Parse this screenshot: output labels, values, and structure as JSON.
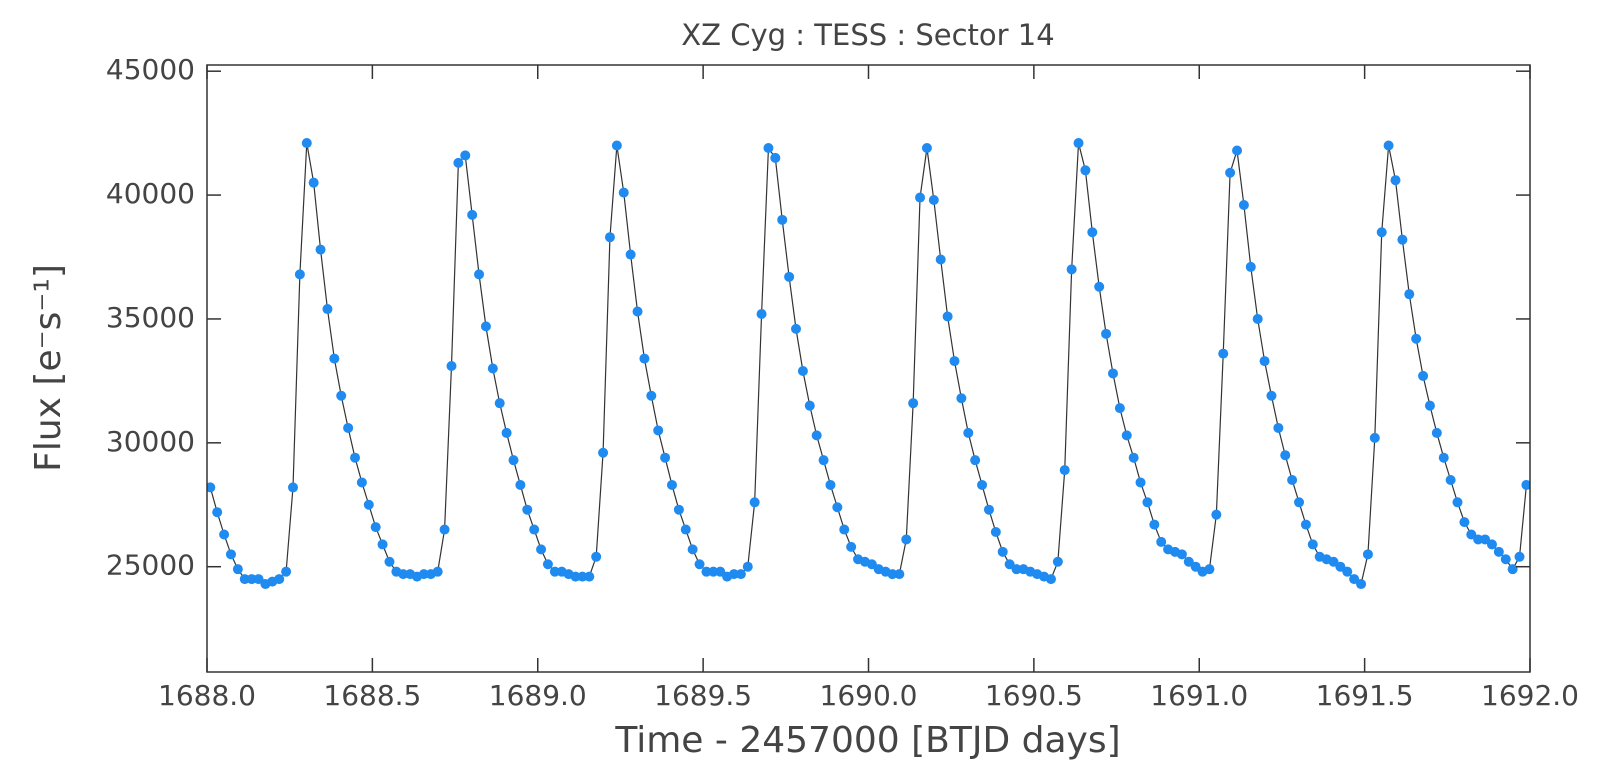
{
  "chart_data": {
    "type": "line",
    "title": "XZ Cyg : TESS : Sector 14",
    "x_label": "Time - 2457000 [BTJD days]",
    "y_label": "Flux [e⁻s⁻¹]",
    "color": "#1f8bf0",
    "line_color": "#333333",
    "xlim": [
      1688.0,
      1692.0
    ],
    "xticks": [
      {
        "value": 1688.0,
        "label": "1688.0"
      },
      {
        "value": 1688.5,
        "label": "1688.5"
      },
      {
        "value": 1689.0,
        "label": "1689.0"
      },
      {
        "value": 1689.5,
        "label": "1689.5"
      },
      {
        "value": 1690.0,
        "label": "1690.0"
      },
      {
        "value": 1690.5,
        "label": "1690.5"
      },
      {
        "value": 1691.0,
        "label": "1691.0"
      },
      {
        "value": 1691.5,
        "label": "1691.5"
      },
      {
        "value": 1692.0,
        "label": "1692.0"
      }
    ],
    "ylim": [
      20750,
      45250
    ],
    "yticks": [
      25000,
      30000,
      35000,
      40000,
      45000
    ],
    "x": [
      1688.01,
      1688.0308,
      1688.0517,
      1688.0725,
      1688.0933,
      1688.1142,
      1688.135,
      1688.1558,
      1688.1767,
      1688.1975,
      1688.2183,
      1688.2392,
      1688.26,
      1688.2808,
      1688.3017,
      1688.3225,
      1688.3433,
      1688.3642,
      1688.385,
      1688.4058,
      1688.4267,
      1688.4475,
      1688.4683,
      1688.4892,
      1688.51,
      1688.5308,
      1688.5517,
      1688.5725,
      1688.5933,
      1688.6142,
      1688.635,
      1688.6558,
      1688.6767,
      1688.6975,
      1688.7183,
      1688.7392,
      1688.76,
      1688.7808,
      1688.8017,
      1688.8225,
      1688.8433,
      1688.8642,
      1688.885,
      1688.9058,
      1688.9267,
      1688.9475,
      1688.9683,
      1688.9892,
      1689.01,
      1689.0308,
      1689.0517,
      1689.0725,
      1689.0933,
      1689.1142,
      1689.135,
      1689.1558,
      1689.1767,
      1689.1975,
      1689.2183,
      1689.2392,
      1689.26,
      1689.2808,
      1689.3017,
      1689.3225,
      1689.3433,
      1689.3642,
      1689.385,
      1689.4058,
      1689.4267,
      1689.4475,
      1689.4683,
      1689.4892,
      1689.51,
      1689.5308,
      1689.5517,
      1689.5725,
      1689.5933,
      1689.6142,
      1689.635,
      1689.6558,
      1689.6767,
      1689.6975,
      1689.7183,
      1689.7392,
      1689.76,
      1689.7808,
      1689.8017,
      1689.8225,
      1689.8433,
      1689.8642,
      1689.885,
      1689.9058,
      1689.9267,
      1689.9475,
      1689.9683,
      1689.9892,
      1690.01,
      1690.0308,
      1690.0517,
      1690.0725,
      1690.0933,
      1690.1142,
      1690.135,
      1690.1558,
      1690.1767,
      1690.1975,
      1690.2183,
      1690.2392,
      1690.26,
      1690.2808,
      1690.3017,
      1690.3225,
      1690.3433,
      1690.3642,
      1690.385,
      1690.4058,
      1690.4267,
      1690.4475,
      1690.4683,
      1690.4892,
      1690.51,
      1690.5308,
      1690.5517,
      1690.5725,
      1690.5933,
      1690.6142,
      1690.635,
      1690.6558,
      1690.6767,
      1690.6975,
      1690.7183,
      1690.7392,
      1690.76,
      1690.7808,
      1690.8017,
      1690.8225,
      1690.8433,
      1690.8642,
      1690.885,
      1690.9058,
      1690.9267,
      1690.9475,
      1690.9683,
      1690.9892,
      1691.01,
      1691.0308,
      1691.0517,
      1691.0725,
      1691.0933,
      1691.1142,
      1691.135,
      1691.1558,
      1691.1767,
      1691.1975,
      1691.2183,
      1691.2392,
      1691.26,
      1691.2808,
      1691.3017,
      1691.3225,
      1691.3433,
      1691.3642,
      1691.385,
      1691.4058,
      1691.4267,
      1691.4475,
      1691.4683,
      1691.4892,
      1691.51,
      1691.5308,
      1691.5517,
      1691.5725,
      1691.5933,
      1691.6142,
      1691.635,
      1691.6558,
      1691.6767,
      1691.6975,
      1691.7183,
      1691.7392,
      1691.76,
      1691.7808,
      1691.8017,
      1691.8225,
      1691.8433,
      1691.8642,
      1691.885,
      1691.9058,
      1691.9267,
      1691.9475,
      1691.9683,
      1691.9892
    ],
    "values": [
      28200,
      27200,
      26300,
      25500,
      24900,
      24500,
      24500,
      24500,
      24300,
      24400,
      24500,
      24800,
      28200,
      36800,
      42100,
      40500,
      37800,
      35400,
      33400,
      31900,
      30600,
      29400,
      28400,
      27500,
      26600,
      25900,
      25200,
      24800,
      24700,
      24700,
      24600,
      24700,
      24700,
      24800,
      26500,
      33100,
      41300,
      41600,
      39200,
      36800,
      34700,
      33000,
      31600,
      30400,
      29300,
      28300,
      27300,
      26500,
      25700,
      25100,
      24800,
      24800,
      24700,
      24600,
      24600,
      24600,
      25400,
      29600,
      38300,
      42000,
      40100,
      37600,
      35300,
      33400,
      31900,
      30500,
      29400,
      28300,
      27300,
      26500,
      25700,
      25100,
      24800,
      24800,
      24800,
      24600,
      24700,
      24700,
      25000,
      27600,
      35200,
      41900,
      41500,
      39000,
      36700,
      34600,
      32900,
      31500,
      30300,
      29300,
      28300,
      27400,
      26500,
      25800,
      25300,
      25200,
      25100,
      24900,
      24800,
      24700,
      24700,
      26100,
      31600,
      39900,
      41900,
      39800,
      37400,
      35100,
      33300,
      31800,
      30400,
      29300,
      28300,
      27300,
      26400,
      25600,
      25100,
      24900,
      24900,
      24800,
      24700,
      24600,
      24500,
      25200,
      28900,
      37000,
      42100,
      41000,
      38500,
      36300,
      34400,
      32800,
      31400,
      30300,
      29400,
      28400,
      27600,
      26700,
      26000,
      25700,
      25600,
      25500,
      25200,
      25000,
      24800,
      24900,
      27100,
      33600,
      40900,
      41800,
      39600,
      37100,
      35000,
      33300,
      31900,
      30600,
      29500,
      28500,
      27600,
      26700,
      25900,
      25400,
      25300,
      25200,
      25000,
      24800,
      24500,
      24300,
      25500,
      30200,
      38500,
      42000,
      40600,
      38200,
      36000,
      34200,
      32700,
      31500,
      30400,
      29400,
      28500,
      27600,
      26800,
      26300,
      26100,
      26100,
      25900,
      25600,
      25300,
      24900,
      25400,
      28300
    ]
  }
}
